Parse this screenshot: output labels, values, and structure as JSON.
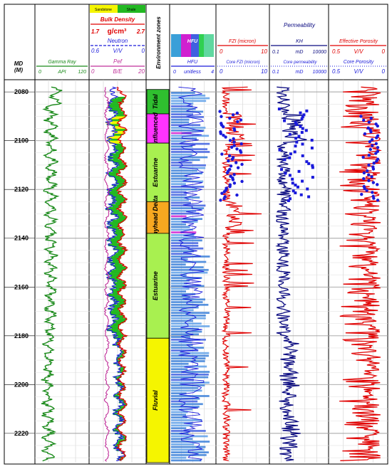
{
  "depth": {
    "label": "MD",
    "unit": "(M)",
    "ticks": [
      2080,
      2100,
      2120,
      2140,
      2160,
      2180,
      2200,
      2220
    ]
  },
  "tracks": {
    "gamma": {
      "name": "Gamma Ray",
      "unit": "API",
      "min": "0",
      "max": "120",
      "color": "#1a8a1a"
    },
    "density": {
      "legend_sand": "Sandstone",
      "legend_shale": "Shale",
      "sand_color": "#f5f500",
      "shale_color": "#22b822",
      "bulk": {
        "name": "Bulk Density",
        "unit": "g/cm³",
        "min": "1.7",
        "max": "2.7",
        "color": "#e00000"
      },
      "neutron": {
        "name": "Neutron",
        "unit": "V/V",
        "min": "0.6",
        "max": "0",
        "color": "#1a1adb"
      },
      "pef": {
        "name": "Pef",
        "unit": "B/E",
        "min": "0",
        "max": "20",
        "color": "#c0309a"
      }
    },
    "env": {
      "name": "Environment zones"
    },
    "hfu": {
      "name": "HFU",
      "name2": "HFU",
      "unit": "unitless",
      "min": "0",
      "max": "4",
      "color": "#1a1adb"
    },
    "fzi": {
      "name": "FZI (micron)",
      "min": "0",
      "max": "10",
      "core": "Core FZI (micron)",
      "cmin": "0",
      "cmax": "10",
      "color": "#e00000",
      "core_color": "#1a1adb"
    },
    "perm": {
      "name": "Permeability",
      "name2": "KH",
      "unit": "mD",
      "min": "0.1",
      "max": "10000",
      "core": "Core permeability",
      "cmin": "0.1",
      "cunit": "mD",
      "cmax": "10000",
      "color": "#0a0a80"
    },
    "poro": {
      "name": "Effective Porosity",
      "unit": "V/V",
      "min": "0.5",
      "max": "0",
      "core": "Core Porosity",
      "cmin": "0.5",
      "cunit": "V/V",
      "cmax": "0",
      "color": "#e00000"
    }
  },
  "chart_data": {
    "type": "line",
    "y_axis": {
      "label": "MD",
      "unit": "(M)",
      "range": [
        2075,
        2232
      ],
      "inverted": true
    },
    "zones": [
      {
        "name": "Tidal",
        "top": 2079,
        "base": 2089,
        "color": "#2fbf2f"
      },
      {
        "name": "Influenced",
        "top": 2089,
        "base": 2101,
        "color": "#ff33ff"
      },
      {
        "name": "Estuarine",
        "top": 2101,
        "base": 2125,
        "color": "#a8f050"
      },
      {
        "name": "Bayhead Delta",
        "top": 2125,
        "base": 2138,
        "color": "#f7a820"
      },
      {
        "name": "Estuarine",
        "top": 2138,
        "base": 2181,
        "color": "#a8f050"
      },
      {
        "name": "Fluvial",
        "top": 2181,
        "base": 2232,
        "color": "#f5f500"
      }
    ]
  }
}
